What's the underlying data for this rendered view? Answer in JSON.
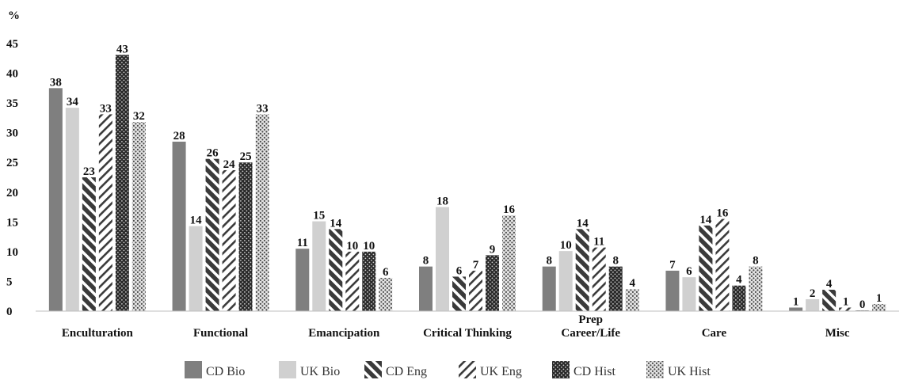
{
  "chart_data": {
    "type": "bar",
    "ylabel": "%",
    "ylim": [
      0,
      45
    ],
    "yticks": [
      0,
      5,
      10,
      15,
      20,
      25,
      30,
      35,
      40,
      45
    ],
    "grid": false,
    "legend_position": "bottom",
    "categories": [
      [
        "Enculturation"
      ],
      [
        "Functional"
      ],
      [
        "Emancipation"
      ],
      [
        "Critical Thinking"
      ],
      [
        "Prep",
        "Career/Life"
      ],
      [
        "Care"
      ],
      [
        "Misc"
      ]
    ],
    "series": [
      {
        "name": "CD Bio",
        "pattern": "solid-dark",
        "color": "#7f7f7f",
        "values": [
          37.5,
          28.5,
          10.5,
          7.5,
          7.5,
          6.8,
          0.6
        ]
      },
      {
        "name": "UK Bio",
        "pattern": "solid-light",
        "color": "#d0d0d0",
        "values": [
          34.2,
          14.3,
          15.1,
          17.5,
          10.1,
          5.7,
          2.0
        ]
      },
      {
        "name": "CD Eng",
        "pattern": "dark-diagonal",
        "color": "#2a2a2a",
        "values": [
          22.5,
          25.6,
          13.8,
          5.8,
          13.8,
          14.4,
          3.6
        ]
      },
      {
        "name": "UK Eng",
        "pattern": "light-diagonal",
        "color": "#3a3a3a",
        "values": [
          33.1,
          23.7,
          10.0,
          6.8,
          10.7,
          15.5,
          0.6
        ]
      },
      {
        "name": "CD Hist",
        "pattern": "dark-dots",
        "color": "#2a2a2a",
        "values": [
          43.1,
          25.0,
          10.0,
          9.4,
          7.5,
          4.3,
          0.1
        ]
      },
      {
        "name": "UK Hist",
        "pattern": "light-dots",
        "color": "#5a5a5a",
        "values": [
          31.8,
          33.1,
          5.6,
          16.1,
          3.7,
          7.5,
          1.2
        ]
      }
    ],
    "data_labels": [
      [
        "38",
        "28",
        "11",
        "8",
        "8",
        "7",
        "1"
      ],
      [
        "34",
        "14",
        "15",
        "18",
        "10",
        "6",
        "2"
      ],
      [
        "23",
        "26",
        "14",
        "6",
        "14",
        "14",
        "4"
      ],
      [
        "33",
        "24",
        "10",
        "7",
        "11",
        "16",
        "1"
      ],
      [
        "43",
        "25",
        "10",
        "9",
        "8",
        "4",
        "0"
      ],
      [
        "32",
        "33",
        "6",
        "16",
        "4",
        "8",
        "1"
      ]
    ]
  }
}
